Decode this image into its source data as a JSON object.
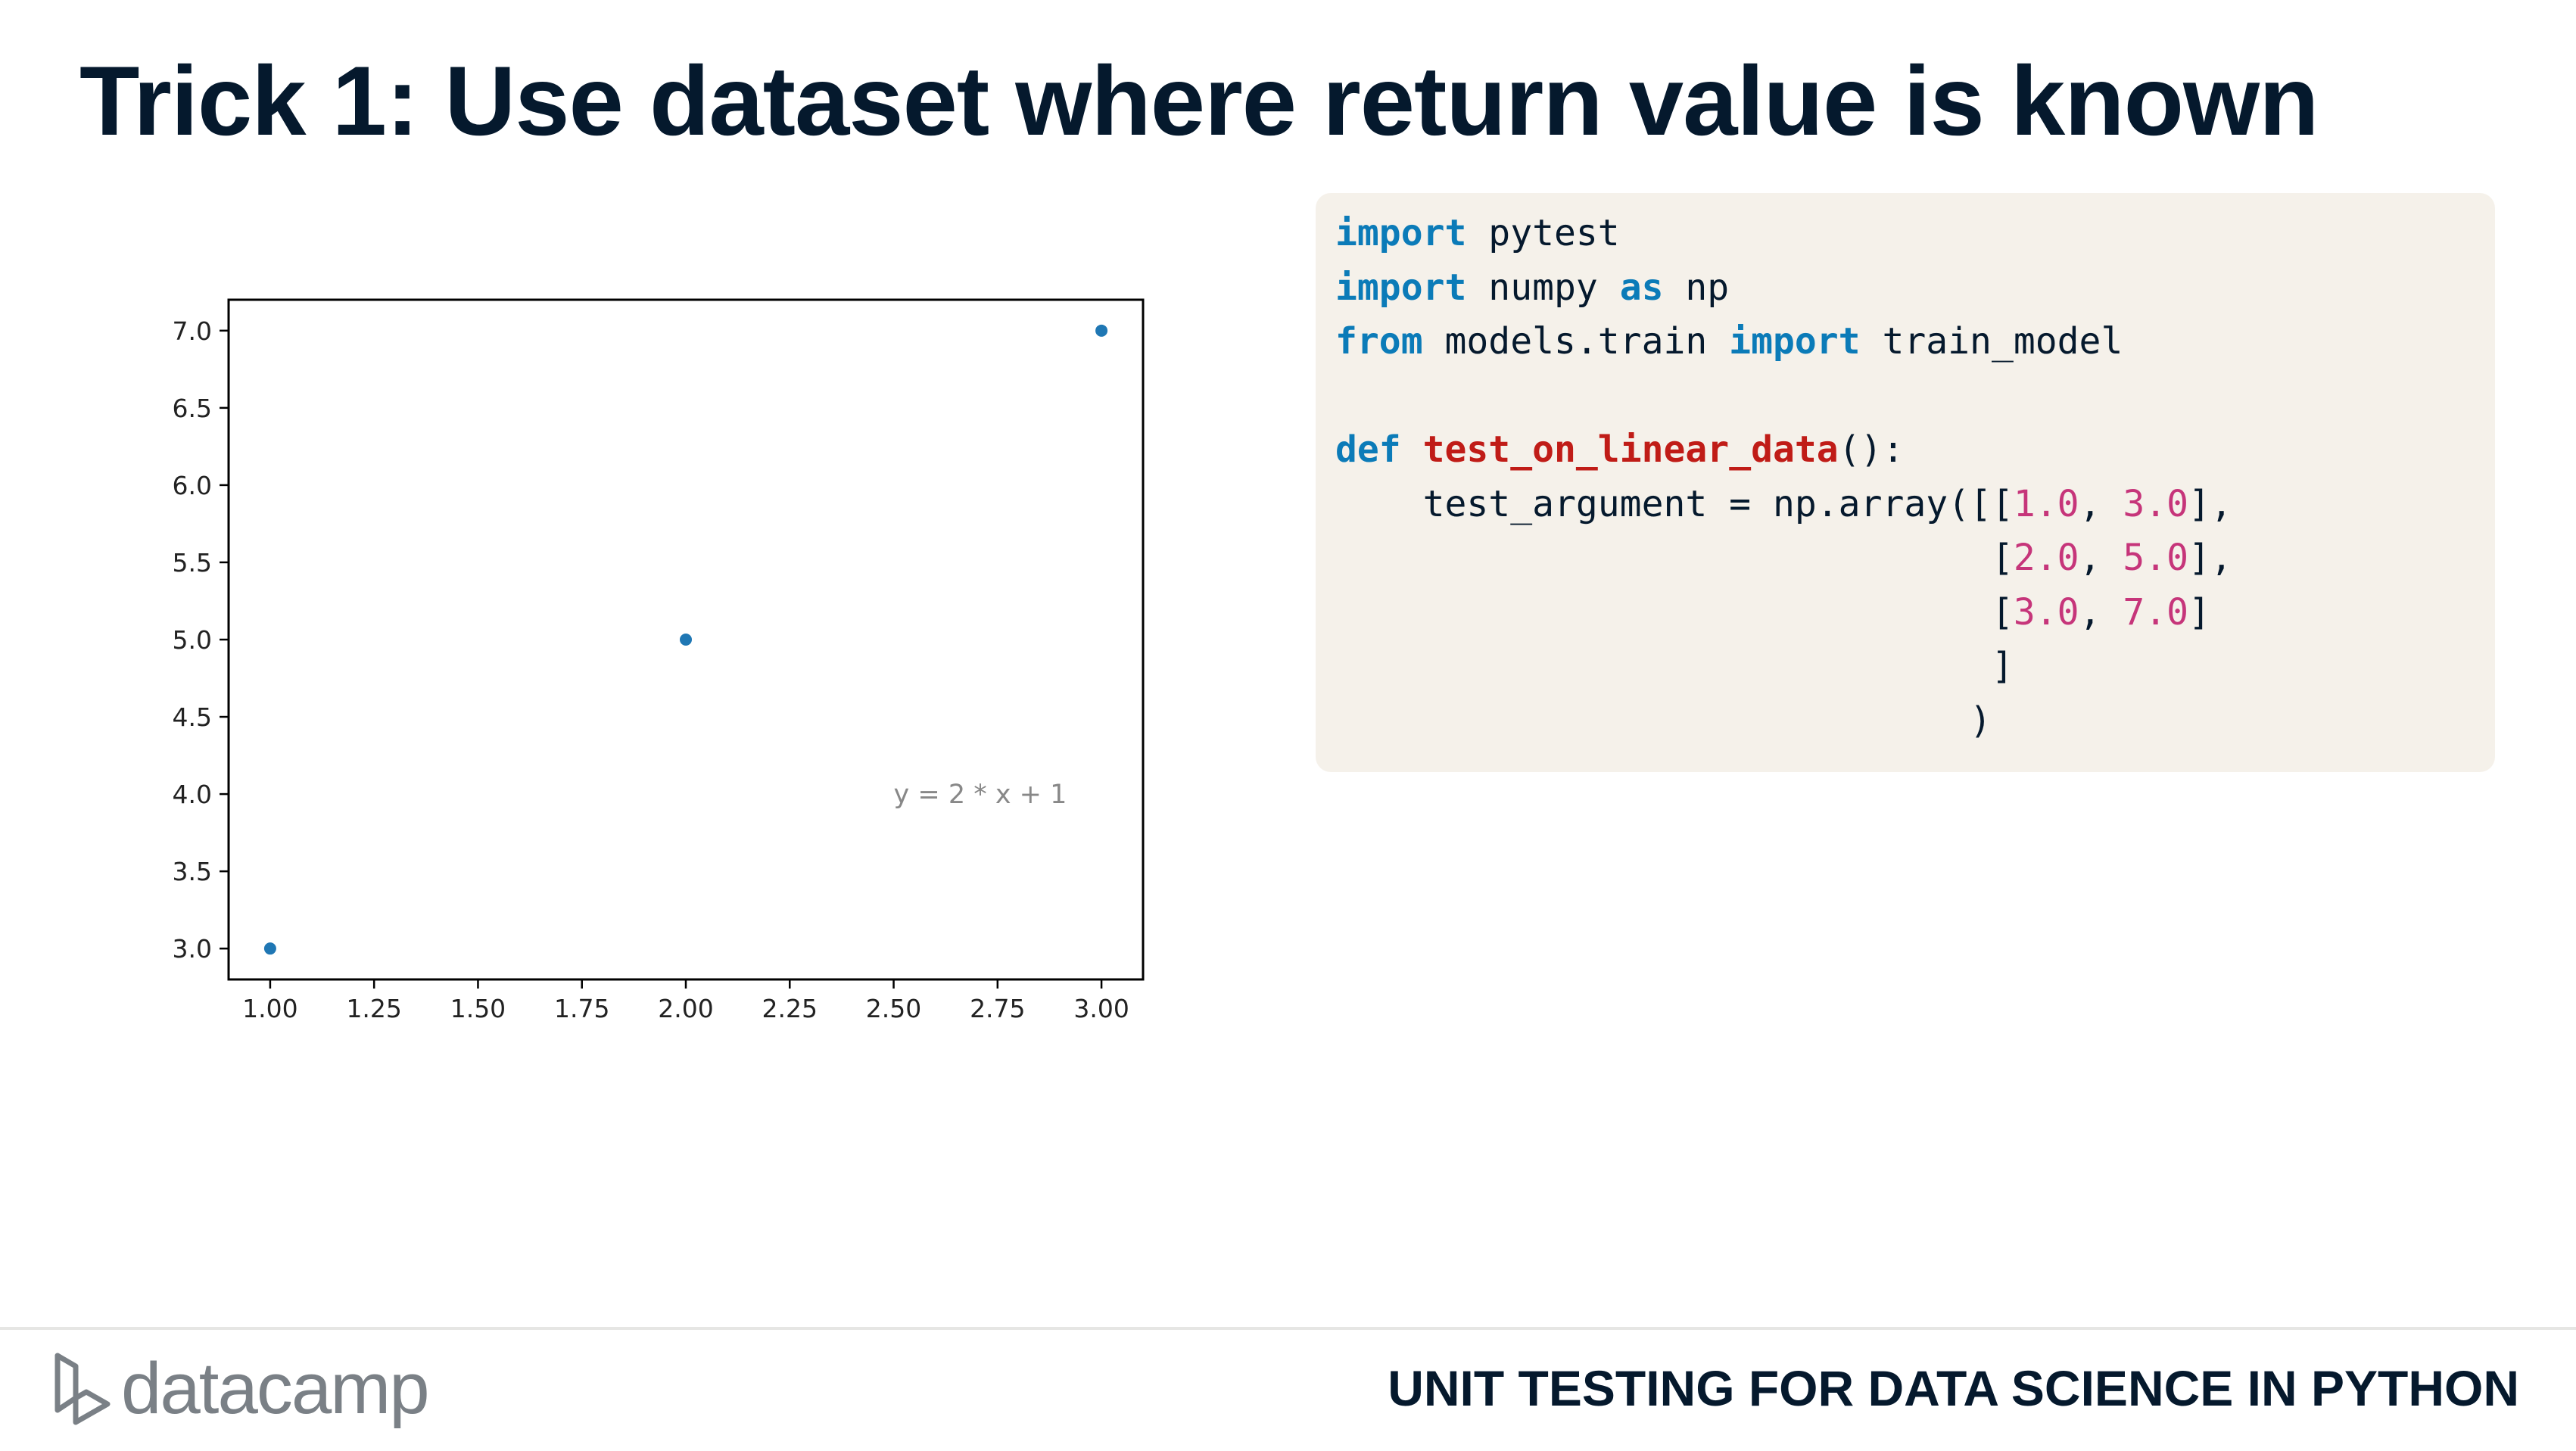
{
  "slide": {
    "title": "Trick 1: Use dataset where return value is known"
  },
  "chart_data": {
    "type": "scatter",
    "x": [
      1.0,
      2.0,
      3.0
    ],
    "y": [
      3.0,
      5.0,
      7.0
    ],
    "xlim": [
      0.9,
      3.1
    ],
    "ylim": [
      2.8,
      7.2
    ],
    "xticks": [
      "1.00",
      "1.25",
      "1.50",
      "1.75",
      "2.00",
      "2.25",
      "2.50",
      "2.75",
      "3.00"
    ],
    "yticks": [
      "3.0",
      "3.5",
      "4.0",
      "4.5",
      "5.0",
      "5.5",
      "6.0",
      "6.5",
      "7.0"
    ],
    "annotation": {
      "text": "y = 2 * x + 1",
      "x": 2.5,
      "y": 4.0
    },
    "point_color": "#1f77b4",
    "annotation_color": "#888888",
    "grid": false,
    "xlabel": "",
    "ylabel": ""
  },
  "code": {
    "lines": [
      [
        {
          "t": "import",
          "c": "kw"
        },
        {
          "t": " pytest"
        }
      ],
      [
        {
          "t": "import",
          "c": "kw"
        },
        {
          "t": " numpy "
        },
        {
          "t": "as",
          "c": "kw"
        },
        {
          "t": " np"
        }
      ],
      [
        {
          "t": "from",
          "c": "kw"
        },
        {
          "t": " models.train "
        },
        {
          "t": "import",
          "c": "kw"
        },
        {
          "t": " train_model"
        }
      ],
      [],
      [
        {
          "t": "def",
          "c": "kw"
        },
        {
          "t": " "
        },
        {
          "t": "test_on_linear_data",
          "c": "fn"
        },
        {
          "t": "():"
        }
      ],
      [
        {
          "t": "    test_argument = np.array([["
        },
        {
          "t": "1.0",
          "c": "num"
        },
        {
          "t": ", "
        },
        {
          "t": "3.0",
          "c": "num"
        },
        {
          "t": "],"
        }
      ],
      [
        {
          "t": "                              ["
        },
        {
          "t": "2.0",
          "c": "num"
        },
        {
          "t": ", "
        },
        {
          "t": "5.0",
          "c": "num"
        },
        {
          "t": "],"
        }
      ],
      [
        {
          "t": "                              ["
        },
        {
          "t": "3.0",
          "c": "num"
        },
        {
          "t": ", "
        },
        {
          "t": "7.0",
          "c": "num"
        },
        {
          "t": "]"
        }
      ],
      [
        {
          "t": "                              ]"
        }
      ],
      [
        {
          "t": "                             )"
        }
      ]
    ]
  },
  "footer": {
    "brand": "datacamp",
    "course": "UNIT TESTING FOR DATA SCIENCE IN PYTHON"
  },
  "colors": {
    "title": "#05192d",
    "code_background": "#f5f1ea",
    "keyword": "#0b7bb8",
    "function_name": "#c01c17",
    "number": "#c6357a",
    "brand_gray": "#7a8086"
  }
}
